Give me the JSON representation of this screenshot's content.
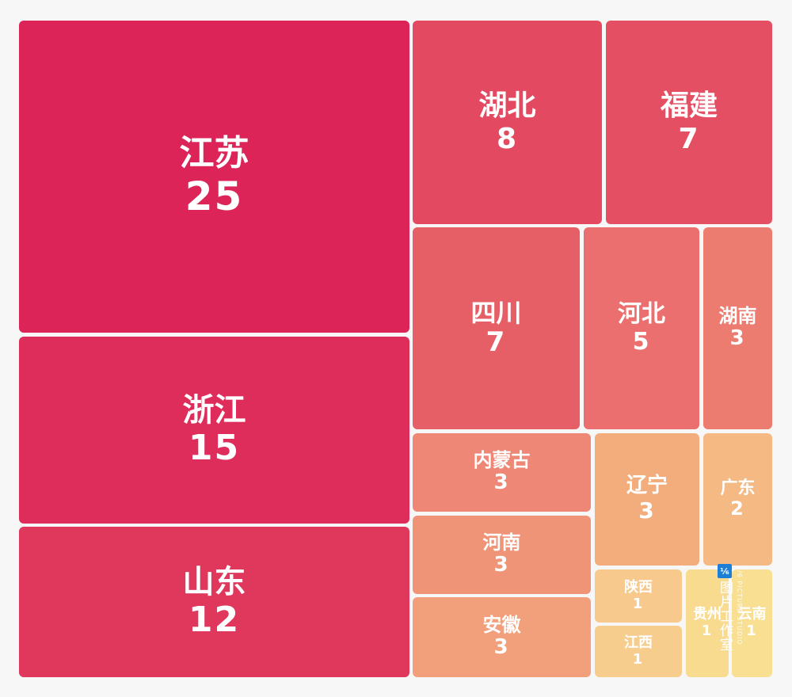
{
  "chart_data": {
    "type": "treemap",
    "title": "",
    "items": [
      {
        "name": "江苏",
        "value": 25,
        "color": "#dc2458"
      },
      {
        "name": "浙江",
        "value": 15,
        "color": "#de2d5a"
      },
      {
        "name": "山东",
        "value": 12,
        "color": "#e0375c"
      },
      {
        "name": "湖北",
        "value": 8,
        "color": "#e34a62"
      },
      {
        "name": "福建",
        "value": 7,
        "color": "#e54f64"
      },
      {
        "name": "四川",
        "value": 7,
        "color": "#e65f66"
      },
      {
        "name": "河北",
        "value": 5,
        "color": "#ea6f6e"
      },
      {
        "name": "湖南",
        "value": 3,
        "color": "#ed7c70"
      },
      {
        "name": "内蒙古",
        "value": 3,
        "color": "#ee8775"
      },
      {
        "name": "河南",
        "value": 3,
        "color": "#f09478"
      },
      {
        "name": "安徽",
        "value": 3,
        "color": "#f2a07b"
      },
      {
        "name": "辽宁",
        "value": 3,
        "color": "#f3ad7d"
      },
      {
        "name": "广东",
        "value": 2,
        "color": "#f5b984"
      },
      {
        "name": "陕西",
        "value": 1,
        "color": "#f7c98c"
      },
      {
        "name": "江西",
        "value": 1,
        "color": "#f7cd8d"
      },
      {
        "name": "贵州",
        "value": 1,
        "color": "#f8db8f"
      },
      {
        "name": "云南",
        "value": 1,
        "color": "#f8df92"
      }
    ]
  },
  "watermark": {
    "logo": "⅙",
    "text": "图片工作室",
    "sub": "1/6 PICTURE STUDIO"
  }
}
